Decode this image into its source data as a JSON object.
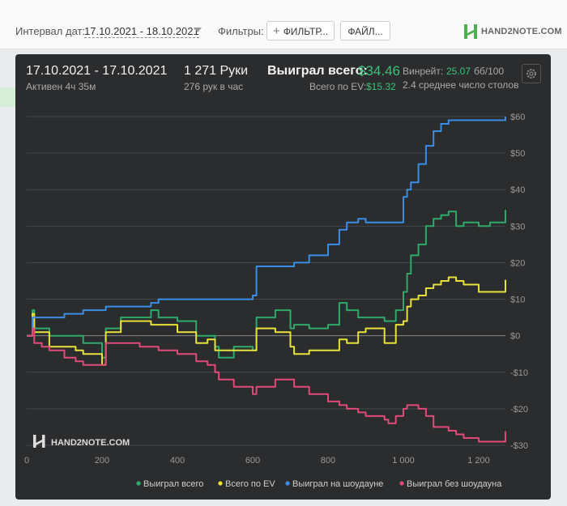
{
  "filters_bar": {
    "date_label": "Интервал дат:",
    "date_range": "17.10.2021 - 18.10.2021",
    "filters_label": "Фильтры:",
    "filter_button": "ФИЛЬТР...",
    "file_button": "ФАЙЛ..."
  },
  "logo": {
    "text": "HAND2NOTE.COM"
  },
  "stats": {
    "period": "17.10.2021 - 17.10.2021",
    "active": "Активен 4ч 35м",
    "hands": "1 271 Руки",
    "hands_per_hour": "276 рук в час",
    "won_label": "Выиграл всего:",
    "won_value": "$34.46",
    "ev_label": "Всего по EV:",
    "ev_value": "$15.32",
    "winrate_label": "Винрейт:",
    "winrate_value": "25.07",
    "winrate_unit": "бб/100",
    "avg_tables": "2.4 среднее число столов"
  },
  "chart_data": {
    "type": "line",
    "watermark": "HAND2NOTE.COM",
    "xlim": [
      0,
      1271
    ],
    "ylim": [
      -30,
      60
    ],
    "x_ticks": [
      0,
      200,
      400,
      600,
      800,
      1000,
      1200
    ],
    "x_tick_labels": [
      "0",
      "200",
      "400",
      "600",
      "800",
      "1 000",
      "1 200"
    ],
    "y_ticks": [
      60,
      50,
      40,
      30,
      20,
      10,
      0,
      -10,
      -20,
      -30
    ],
    "y_tick_labels": [
      "$60",
      "$50",
      "$40",
      "$30",
      "$20",
      "$10",
      "$0",
      "-$10",
      "-$20",
      "-$30"
    ],
    "grid": true,
    "legend_position": "bottom",
    "series": [
      {
        "name": "Выиграл всего",
        "color": "#2eaa6b",
        "x": [
          0,
          15,
          20,
          40,
          60,
          100,
          130,
          150,
          200,
          210,
          250,
          300,
          330,
          350,
          400,
          450,
          480,
          500,
          510,
          550,
          600,
          610,
          660,
          700,
          710,
          750,
          800,
          830,
          850,
          880,
          900,
          950,
          960,
          980,
          1000,
          1010,
          1020,
          1040,
          1060,
          1080,
          1100,
          1120,
          1140,
          1160,
          1200,
          1230,
          1271
        ],
        "y": [
          0,
          7,
          2,
          2,
          0,
          0,
          0,
          -2,
          -6,
          2,
          5,
          5,
          7,
          5,
          4,
          0,
          0,
          -3,
          -6,
          -3,
          -4,
          5,
          7,
          2,
          3,
          2,
          3,
          9,
          7,
          5,
          5,
          4,
          4,
          7,
          12,
          17,
          22,
          25,
          30,
          32,
          33,
          34,
          30,
          31,
          30,
          31,
          34.46
        ]
      },
      {
        "name": "Всего по EV",
        "color": "#e8e23a",
        "x": [
          0,
          15,
          20,
          40,
          60,
          100,
          130,
          150,
          200,
          210,
          250,
          300,
          330,
          350,
          400,
          450,
          480,
          500,
          510,
          550,
          600,
          610,
          660,
          700,
          710,
          750,
          800,
          830,
          850,
          880,
          900,
          950,
          960,
          980,
          1000,
          1010,
          1020,
          1040,
          1060,
          1080,
          1100,
          1120,
          1140,
          1160,
          1200,
          1230,
          1271
        ],
        "y": [
          0,
          6,
          1,
          1,
          -3,
          -3,
          -4,
          -5,
          -8,
          1,
          4,
          4,
          3,
          3,
          1,
          -2,
          -1,
          -4,
          -4,
          -4,
          -4,
          2,
          1,
          -3,
          -5,
          -4,
          -4,
          -1,
          -2,
          1,
          2,
          -2,
          -2,
          3,
          4,
          8,
          10,
          11,
          13,
          14,
          15,
          16,
          15,
          14,
          12,
          12,
          15.32
        ]
      },
      {
        "name": "Выиграл на шоудауне",
        "color": "#3a8ee6",
        "x": [
          0,
          15,
          20,
          40,
          60,
          100,
          130,
          150,
          200,
          210,
          250,
          300,
          330,
          350,
          400,
          450,
          480,
          500,
          510,
          550,
          600,
          610,
          660,
          700,
          710,
          750,
          800,
          830,
          850,
          880,
          900,
          950,
          960,
          980,
          1000,
          1010,
          1020,
          1040,
          1060,
          1080,
          1100,
          1120,
          1140,
          1160,
          1200,
          1230,
          1271
        ],
        "y": [
          0,
          5,
          5,
          5,
          5,
          6,
          6,
          7,
          7,
          8,
          8,
          8,
          9,
          10,
          10,
          10,
          10,
          10,
          10,
          10,
          11,
          19,
          19,
          19,
          20,
          22,
          25,
          29,
          31,
          32,
          31,
          31,
          31,
          31,
          38,
          40,
          42,
          47,
          52,
          56,
          58,
          59,
          59,
          59,
          59,
          59,
          60
        ]
      },
      {
        "name": "Выиграл без шоудауна",
        "color": "#e04a78",
        "x": [
          0,
          15,
          20,
          40,
          60,
          100,
          130,
          150,
          200,
          210,
          250,
          300,
          330,
          350,
          400,
          450,
          480,
          500,
          510,
          550,
          600,
          610,
          660,
          700,
          710,
          750,
          800,
          830,
          850,
          880,
          900,
          950,
          960,
          980,
          1000,
          1010,
          1020,
          1040,
          1060,
          1080,
          1100,
          1120,
          1140,
          1160,
          1200,
          1230,
          1271
        ],
        "y": [
          0,
          2,
          -2,
          -3,
          -4,
          -6,
          -7,
          -8,
          -8,
          -2,
          -2,
          -3,
          -3,
          -4,
          -5,
          -7,
          -8,
          -10,
          -12,
          -14,
          -16,
          -14,
          -12,
          -12,
          -14,
          -16,
          -18,
          -19,
          -20,
          -21,
          -22,
          -23,
          -24,
          -22,
          -20,
          -19,
          -19,
          -20,
          -22,
          -25,
          -25,
          -26,
          -27,
          -28,
          -29,
          -29,
          -26.14
        ]
      }
    ]
  }
}
